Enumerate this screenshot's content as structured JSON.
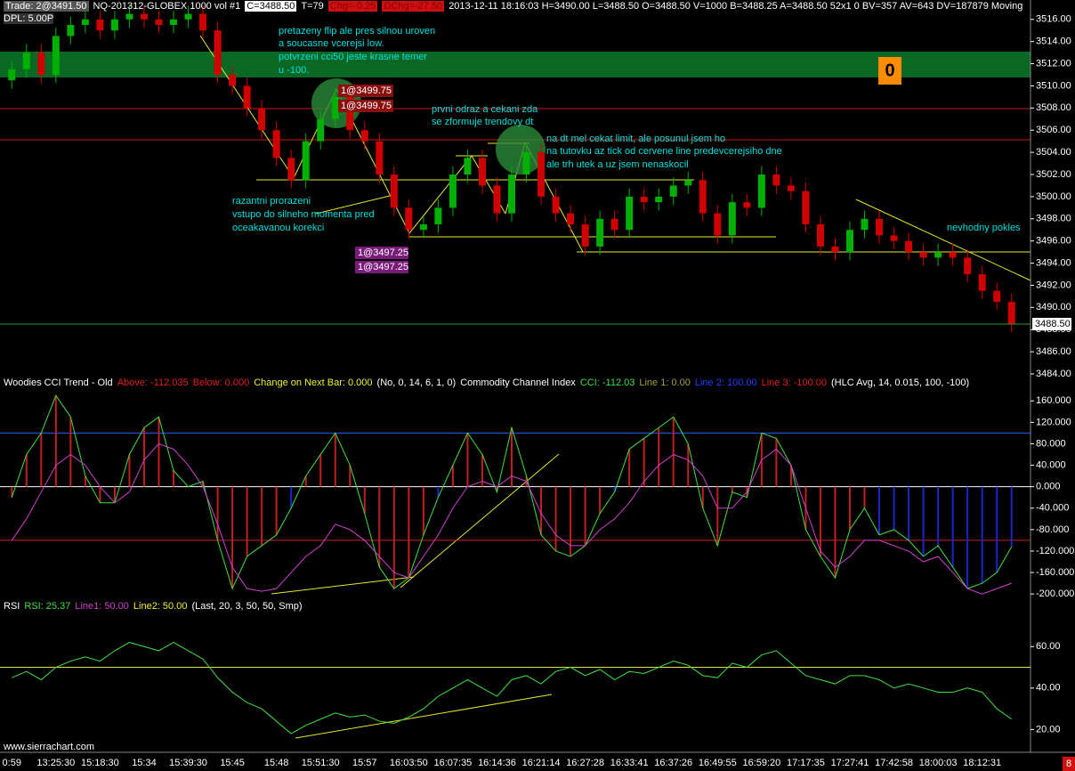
{
  "header": {
    "trade": "Trade: 2@3491.50",
    "symbol": "NQ-201312-GLOBEX  1000 vol  #1",
    "close": "C=3488.50",
    "ticks": "T=79",
    "chg": "Chg=-0.25",
    "dchg": "DChg=-27.50",
    "info": "2013-12-11 18:16:03 H=3490.00 L=3488.50 O=3488.50 V=1000 B=3488.25 A=3488.50 52x1 0 BV=357 AV=643 DV=187879 Moving",
    "dpl": "DPL: 5.00P"
  },
  "chart_data": [
    {
      "type": "candlestick",
      "categories": [
        "0:59",
        null,
        null,
        "13:25:30",
        null,
        null,
        "15:18:30",
        null,
        null,
        "15:34",
        null,
        null,
        "15:39:30",
        null,
        null,
        "15:45",
        null,
        null,
        "15:48",
        null,
        null,
        "15:51:30",
        null,
        null,
        "15:57",
        null,
        null,
        "16:03:50",
        null,
        null,
        "16:07:35",
        null,
        null,
        "16:14:36",
        null,
        null,
        "16:21:14",
        null,
        null,
        "16:27:28",
        null,
        null,
        "16:33:41",
        null,
        null,
        "16:37:26",
        null,
        null,
        "16:49:55",
        null,
        null,
        "16:59:20",
        null,
        null,
        "17:17:35",
        null,
        null,
        "17:27:41",
        null,
        null,
        "17:42:58",
        null,
        null,
        "18:00:03",
        null,
        null,
        "18:12:31",
        null,
        null
      ],
      "open": [
        3510.5,
        3511.5,
        3513,
        3511,
        3514.5,
        3515.5,
        3516,
        3515,
        3516,
        3516.5,
        3516,
        3515.5,
        3516,
        3516.5,
        3515,
        3511,
        3510,
        3508,
        3506,
        3503.5,
        3501.5,
        3505,
        3507,
        3509,
        3506,
        3505,
        3502,
        3499,
        3497,
        3497.5,
        3499,
        3502,
        3503.5,
        3501,
        3498.5,
        3502,
        3504,
        3500,
        3498.5,
        3497.5,
        3495.5,
        3498,
        3497,
        3500,
        3499.5,
        3500,
        3501,
        3501.5,
        3498.5,
        3496.5,
        3499.5,
        3499,
        3502,
        3501,
        3500.5,
        3497.5,
        3495.5,
        3495,
        3497,
        3498,
        3496.5,
        3496,
        3495,
        3494.5,
        3495,
        3494.5,
        3493,
        3491.5,
        3490.5
      ],
      "high": [
        3512.25,
        3513.75,
        3513.75,
        3515.25,
        3516.25,
        3516.75,
        3516.75,
        3516.75,
        3517.25,
        3517.25,
        3516.75,
        3516.75,
        3517.25,
        3517.25,
        3515.75,
        3511.75,
        3510.75,
        3508.75,
        3506.75,
        3504.25,
        3505.75,
        3507.75,
        3509.75,
        3509.75,
        3506.75,
        3505.75,
        3502.75,
        3499.75,
        3498.25,
        3499.75,
        3502.75,
        3504.25,
        3504.25,
        3501.75,
        3502.75,
        3504.75,
        3504.75,
        3500.75,
        3499.25,
        3498.25,
        3498.75,
        3498.75,
        3500.75,
        3500.75,
        3500.75,
        3501.75,
        3502.25,
        3502.25,
        3499.25,
        3500.25,
        3500.25,
        3502.75,
        3502.75,
        3501.75,
        3501.25,
        3498.25,
        3496.25,
        3497.75,
        3498.75,
        3498.75,
        3497.25,
        3496.75,
        3495.75,
        3495.75,
        3495.75,
        3495.25,
        3493.75,
        3492.25,
        3491.25
      ],
      "low": [
        3509.75,
        3510.75,
        3510.25,
        3510.25,
        3513.75,
        3514.75,
        3514.25,
        3514.25,
        3515.25,
        3515.25,
        3514.75,
        3514.75,
        3515.25,
        3514.25,
        3510.25,
        3509.25,
        3507.25,
        3505.25,
        3502.75,
        3500.75,
        3500.75,
        3504.25,
        3506.25,
        3505.25,
        3504.25,
        3501.25,
        3498.25,
        3496.25,
        3496.25,
        3496.75,
        3498.25,
        3501.25,
        3500.25,
        3497.75,
        3497.75,
        3501.25,
        3499.25,
        3497.75,
        3496.75,
        3494.75,
        3494.75,
        3496.25,
        3496.25,
        3498.75,
        3498.75,
        3499.25,
        3500.25,
        3497.75,
        3495.75,
        3495.75,
        3498.25,
        3498.25,
        3500.25,
        3499.75,
        3496.75,
        3494.75,
        3494.25,
        3494.25,
        3496.25,
        3495.75,
        3495.25,
        3494.25,
        3493.75,
        3493.75,
        3493.75,
        3492.25,
        3490.75,
        3489.75,
        3487.75
      ],
      "close": [
        3511.5,
        3513,
        3511,
        3514.5,
        3515.5,
        3516,
        3515,
        3516,
        3516.5,
        3516,
        3515.5,
        3516,
        3516.5,
        3515,
        3511,
        3510,
        3508,
        3506,
        3503.5,
        3501.5,
        3505,
        3507,
        3509,
        3506,
        3505,
        3502,
        3499,
        3497,
        3497.5,
        3499,
        3502,
        3503.5,
        3501,
        3498.5,
        3502,
        3504,
        3500,
        3498.5,
        3497.5,
        3495.5,
        3498,
        3497,
        3500,
        3499.5,
        3500,
        3501,
        3501.5,
        3498.5,
        3496.5,
        3499.5,
        3499,
        3502,
        3501,
        3500.5,
        3497.5,
        3495.5,
        3495,
        3497,
        3498,
        3496.5,
        3496,
        3495,
        3494.5,
        3495,
        3494.5,
        3493,
        3491.5,
        3490.5,
        3488.5
      ],
      "up_color": "#00b000",
      "down_color": "#d00000",
      "ylim": [
        3484,
        3517.75
      ],
      "yticks": [
        {
          "value": 3516,
          "label": "3516.00"
        },
        {
          "value": 3514,
          "label": "3514.00"
        },
        {
          "value": 3512,
          "label": "3512.00"
        },
        {
          "value": 3510,
          "label": "3510.00"
        },
        {
          "value": 3508,
          "label": "3508.00"
        },
        {
          "value": 3506,
          "label": "3506.00"
        },
        {
          "value": 3504,
          "label": "3504.00"
        },
        {
          "value": 3502,
          "label": "3502.00"
        },
        {
          "value": 3500,
          "label": "3500.00"
        },
        {
          "value": 3498,
          "label": "3498.00"
        },
        {
          "value": 3496,
          "label": "3496.00"
        },
        {
          "value": 3494,
          "label": "3494.00"
        },
        {
          "value": 3492,
          "label": "3492.00"
        },
        {
          "value": 3490,
          "label": "3490.00"
        },
        {
          "value": 3488,
          "label": "3488.00"
        },
        {
          "value": 3486,
          "label": "3486.00"
        },
        {
          "value": 3484,
          "label": "3484.00"
        }
      ],
      "last_price": {
        "value": 3488.5,
        "label": "3488.50"
      },
      "badge": "0",
      "annotations": [
        "pretazeny flip ale pres silnou uroven",
        "a soucasne  vcerejsi low.",
        "potvrzeni cci50 jeste krasne temer",
        "u -100.",
        "prvni odraz a cekani zda",
        "se zformuje trendovy dt",
        "na dt mel cekat limit, ale posunul jsem ho",
        "na tutovku az tick od cervene line predevcerejsiho dne",
        "ale trh utek a uz jsem nenaskocil",
        "razantni prorazeni",
        "vstupo do silneho momenta pred",
        "oceakavanou korekci",
        "nevhodny pokles"
      ],
      "orders": [
        "1@3499.75",
        "1@3499.75",
        "1@3497.25",
        "1@3497.25"
      ]
    },
    {
      "type": "line",
      "title": "Woodies CCI Trend - Old",
      "legend": [
        "Above: -112.035",
        "Below: 0.000",
        "Change on Next Bar: 0.000",
        "(No, 0, 14, 6, 1, 0)",
        "Commodity Channel Index",
        "CCI: -112.03",
        "Line 1: 0.00",
        "Line 2: 100.00",
        "Line 3: -100.00",
        "(HLC Avg, 14, 0.015, 100, -100)"
      ],
      "series": [
        {
          "color": "#40e040",
          "histogram": true,
          "trend_bars": 6,
          "trend_color": "#1828c8",
          "hist_color": "#c02020",
          "values": [
            -20,
            60,
            100,
            170,
            130,
            20,
            -30,
            -30,
            60,
            110,
            130,
            30,
            0,
            10,
            -100,
            -190,
            -130,
            -110,
            -90,
            -40,
            20,
            60,
            100,
            40,
            -50,
            -150,
            -190,
            -170,
            -90,
            -20,
            40,
            100,
            60,
            -10,
            110,
            20,
            -90,
            -120,
            -130,
            -110,
            -50,
            -10,
            70,
            90,
            110,
            130,
            80,
            -40,
            -110,
            -10,
            -20,
            100,
            90,
            40,
            -80,
            -130,
            -170,
            -80,
            -40,
            -90,
            -80,
            -100,
            -130,
            -110,
            -150,
            -190,
            -180,
            -160,
            -112
          ]
        },
        {
          "color": "#d040d0",
          "values": [
            -100,
            -60,
            -10,
            40,
            60,
            40,
            0,
            -30,
            -10,
            50,
            80,
            70,
            40,
            0,
            -70,
            -150,
            -190,
            -195,
            -190,
            -160,
            -130,
            -110,
            -70,
            -80,
            -100,
            -130,
            -160,
            -170,
            -130,
            -90,
            -40,
            0,
            10,
            0,
            20,
            10,
            -50,
            -90,
            -110,
            -110,
            -80,
            -60,
            -30,
            10,
            40,
            60,
            50,
            20,
            -40,
            -40,
            -10,
            50,
            70,
            40,
            -40,
            -120,
            -150,
            -130,
            -100,
            -100,
            -110,
            -120,
            -140,
            -130,
            -160,
            -190,
            -200,
            -190,
            -180
          ]
        }
      ],
      "ref_lines": [
        {
          "value": 100,
          "color": "#2060ff"
        },
        {
          "value": 0,
          "color": "#ffffff"
        },
        {
          "value": -100,
          "color": "#d02020"
        }
      ],
      "ylim": [
        -213,
        177
      ],
      "yticks": [
        {
          "value": 160,
          "label": "160.000"
        },
        {
          "value": 120,
          "label": "120.000"
        },
        {
          "value": 80,
          "label": "80.000"
        },
        {
          "value": 40,
          "label": "40.000"
        },
        {
          "value": 0,
          "label": "0.000"
        },
        {
          "value": -40,
          "label": "-40.000"
        },
        {
          "value": -80,
          "label": "-80.000"
        },
        {
          "value": -120,
          "label": "-120.000"
        },
        {
          "value": -160,
          "label": "-160.000"
        },
        {
          "value": -200,
          "label": "-200.000"
        }
      ]
    },
    {
      "type": "line",
      "title": "RSI",
      "legend": [
        "RSI: 25.37",
        "Line1: 50.00",
        "Line2: 50.00",
        "(Last, 20, 3, 50, 50, Smp)"
      ],
      "series": [
        {
          "color": "#40e040",
          "values": [
            45,
            48,
            44,
            50,
            53,
            55,
            53,
            58,
            62,
            60,
            58,
            62,
            58,
            54,
            45,
            38,
            33,
            30,
            24,
            18,
            22,
            25,
            28,
            26,
            27,
            24,
            23,
            26,
            30,
            36,
            40,
            44,
            40,
            36,
            44,
            46,
            42,
            48,
            50,
            46,
            49,
            44,
            48,
            47,
            50,
            53,
            51,
            46,
            45,
            52,
            50,
            56,
            58,
            52,
            46,
            44,
            42,
            46,
            46,
            44,
            40,
            42,
            40,
            38,
            38,
            40,
            38,
            30,
            25
          ]
        }
      ],
      "ref_lines": [
        {
          "value": 50,
          "color": "#e0e040"
        }
      ],
      "ylim": [
        12,
        76
      ],
      "yticks": [
        {
          "value": 60,
          "label": "60.00"
        },
        {
          "value": 40,
          "label": "40.00"
        },
        {
          "value": 20,
          "label": "20.00"
        }
      ]
    }
  ],
  "footer": {
    "site": "www.sierrachart.com",
    "badge": "8"
  }
}
